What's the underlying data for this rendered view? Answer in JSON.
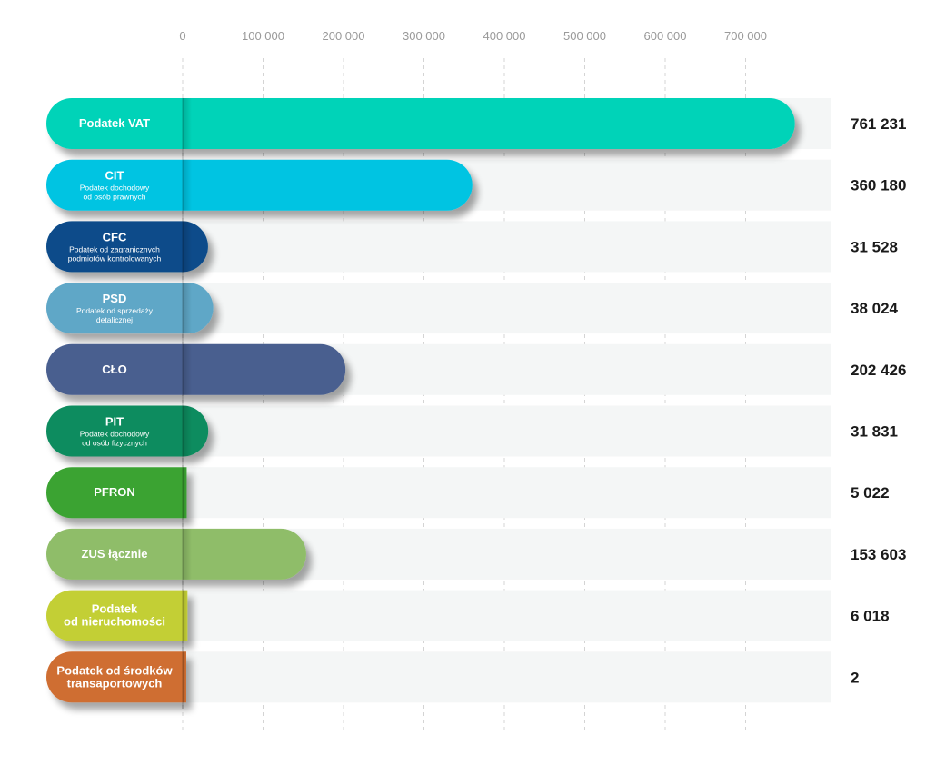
{
  "chart_data": {
    "type": "bar",
    "orientation": "horizontal",
    "xlim": [
      0,
      700000
    ],
    "xticks": [
      0,
      100000,
      200000,
      300000,
      400000,
      500000,
      600000,
      700000
    ],
    "xtick_labels": [
      "0",
      "100 000",
      "200 000",
      "300 000",
      "400 000",
      "500 000",
      "600 000",
      "700 000"
    ],
    "grid": "vertical dashed",
    "categories": [
      {
        "title": "Podatek VAT",
        "subtitle": "",
        "value": 761231,
        "value_label": "761 231",
        "color": "#00d3b8"
      },
      {
        "title": "CIT",
        "subtitle": "Podatek dochodowy\nod osób prawnych",
        "value": 360180,
        "value_label": "360 180",
        "color": "#00c4e2"
      },
      {
        "title": "CFC",
        "subtitle": "Podatek od zagranicznych\npodmiotów kontrolowanych",
        "value": 31528,
        "value_label": "31 528",
        "color": "#084c8a"
      },
      {
        "title": "PSD",
        "subtitle": "Podatek od sprzedaży\ndetalicznej",
        "value": 38024,
        "value_label": "38 024",
        "color": "#5fa7c7"
      },
      {
        "title": "CŁO",
        "subtitle": "",
        "value": 202426,
        "value_label": "202 426",
        "color": "#4a5e8f"
      },
      {
        "title": "PIT",
        "subtitle": "Podatek dochodowy\nod osób fizycznych",
        "value": 31831,
        "value_label": "31 831",
        "color": "#0d8c5e"
      },
      {
        "title": "PFRON",
        "subtitle": "",
        "value": 5022,
        "value_label": "5 022",
        "color": "#3aa331"
      },
      {
        "title": "ZUS łącznie",
        "subtitle": "",
        "value": 153603,
        "value_label": "153 603",
        "color": "#8fbd69"
      },
      {
        "title": "Podatek\nod nieruchomości",
        "subtitle": "",
        "value": 6018,
        "value_label": "6 018",
        "color": "#c3cf34"
      },
      {
        "title": "Podatek od środków\ntransaportowych",
        "subtitle": "",
        "value": 2,
        "value_label": "2",
        "color": "#cf6e33"
      }
    ]
  }
}
